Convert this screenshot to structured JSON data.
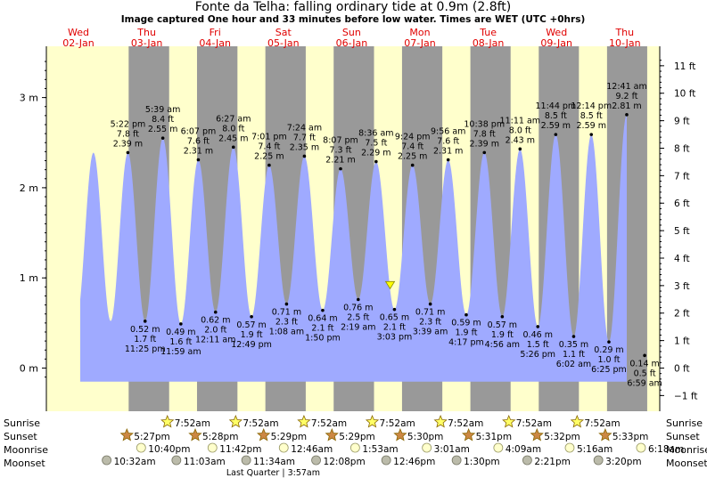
{
  "chart_data": {
    "type": "area",
    "title": "Fonte da Telha: falling  ordinary tide at 0.9m (2.8ft)",
    "subtitle": "Image captured One hour and 33 minutes before low water. Times are WET (UTC +0hrs)",
    "days": [
      {
        "day": "Wed",
        "date": "02-Jan"
      },
      {
        "day": "Thu",
        "date": "03-Jan"
      },
      {
        "day": "Fri",
        "date": "04-Jan"
      },
      {
        "day": "Sat",
        "date": "05-Jan"
      },
      {
        "day": "Sun",
        "date": "06-Jan"
      },
      {
        "day": "Mon",
        "date": "07-Jan"
      },
      {
        "day": "Tue",
        "date": "08-Jan"
      },
      {
        "day": "Wed",
        "date": "09-Jan"
      },
      {
        "day": "Thu",
        "date": "10-Jan"
      }
    ],
    "y_left": {
      "unit": "m",
      "ticks": [
        "0 m",
        "1 m",
        "2 m",
        "3 m"
      ],
      "values": [
        0,
        1,
        2,
        3
      ],
      "ylim": [
        -0.15,
        3.55
      ]
    },
    "y_right": {
      "unit": "ft",
      "ticks": [
        "−1 ft",
        "0 ft",
        "1 ft",
        "2 ft",
        "3 ft",
        "4 ft",
        "5 ft",
        "6 ft",
        "7 ft",
        "8 ft",
        "9 ft",
        "10 ft",
        "11 ft"
      ],
      "values": [
        -1,
        0,
        1,
        2,
        3,
        4,
        5,
        6,
        7,
        8,
        9,
        10,
        11
      ]
    },
    "tides": [
      {
        "kind": "high",
        "time": "5:22 pm",
        "ft": "7.8 ft",
        "m": 2.39,
        "label_m": "2.39 m",
        "day_offset": 0.7236
      },
      {
        "kind": "low",
        "time": "11:25 pm",
        "ft": "1.7 ft",
        "m": 0.52,
        "label_m": "0.52 m",
        "day_offset": 0.9757
      },
      {
        "kind": "high",
        "time": "5:39 am",
        "ft": "8.4 ft",
        "m": 2.55,
        "label_m": "2.55 m",
        "day_offset": 1.2354
      },
      {
        "kind": "low",
        "time": "11:59 am",
        "ft": "1.6 ft",
        "m": 0.49,
        "label_m": "0.49 m",
        "day_offset": 1.4993
      },
      {
        "kind": "high",
        "time": "6:07 pm",
        "ft": "7.6 ft",
        "m": 2.31,
        "label_m": "2.31 m",
        "day_offset": 1.7549
      },
      {
        "kind": "low",
        "time": "12:11 am",
        "ft": "2.0 ft",
        "m": 0.62,
        "label_m": "0.62 m",
        "day_offset": 2.0076
      },
      {
        "kind": "high",
        "time": "6:27 am",
        "ft": "8.0 ft",
        "m": 2.45,
        "label_m": "2.45 m",
        "day_offset": 2.2688
      },
      {
        "kind": "low",
        "time": "12:49 pm",
        "ft": "1.9 ft",
        "m": 0.57,
        "label_m": "0.57 m",
        "day_offset": 2.534
      },
      {
        "kind": "high",
        "time": "7:01 pm",
        "ft": "7.4 ft",
        "m": 2.25,
        "label_m": "2.25 m",
        "day_offset": 2.7924
      },
      {
        "kind": "low",
        "time": "1:08 am",
        "ft": "2.3 ft",
        "m": 0.71,
        "label_m": "0.71 m",
        "day_offset": 3.0472
      },
      {
        "kind": "high",
        "time": "7:24 am",
        "ft": "7.7 ft",
        "m": 2.35,
        "label_m": "2.35 m",
        "day_offset": 3.3083
      },
      {
        "kind": "low",
        "time": "1:50 pm",
        "ft": "2.1 ft",
        "m": 0.64,
        "label_m": "0.64 m",
        "day_offset": 3.5764
      },
      {
        "kind": "high",
        "time": "8:07 pm",
        "ft": "7.3 ft",
        "m": 2.21,
        "label_m": "2.21 m",
        "day_offset": 3.8382
      },
      {
        "kind": "low",
        "time": "2:19 am",
        "ft": "2.5 ft",
        "m": 0.76,
        "label_m": "0.76 m",
        "day_offset": 4.0965
      },
      {
        "kind": "high",
        "time": "8:36 am",
        "ft": "7.5 ft",
        "m": 2.29,
        "label_m": "2.29 m",
        "day_offset": 4.3583
      },
      {
        "kind": "low",
        "time": "3:03 pm",
        "ft": "2.1 ft",
        "m": 0.65,
        "label_m": "0.65 m",
        "day_offset": 4.6271
      },
      {
        "kind": "high",
        "time": "9:24 pm",
        "ft": "7.4 ft",
        "m": 2.25,
        "label_m": "2.25 m",
        "day_offset": 4.8917
      },
      {
        "kind": "low",
        "time": "3:39 am",
        "ft": "2.3 ft",
        "m": 0.71,
        "label_m": "0.71 m",
        "day_offset": 5.1521
      },
      {
        "kind": "high",
        "time": "9:56 am",
        "ft": "7.6 ft",
        "m": 2.31,
        "label_m": "2.31 m",
        "day_offset": 5.4139
      },
      {
        "kind": "low",
        "time": "4:17 pm",
        "ft": "1.9 ft",
        "m": 0.59,
        "label_m": "0.59 m",
        "day_offset": 5.6785
      },
      {
        "kind": "high",
        "time": "10:38 pm",
        "ft": "7.8 ft",
        "m": 2.39,
        "label_m": "2.39 m",
        "day_offset": 5.9431
      },
      {
        "kind": "low",
        "time": "4:56 am",
        "ft": "1.9 ft",
        "m": 0.57,
        "label_m": "0.57 m",
        "day_offset": 6.2056
      },
      {
        "kind": "high",
        "time": "11:11 am",
        "ft": "8.0 ft",
        "m": 2.43,
        "label_m": "2.43 m",
        "day_offset": 6.466
      },
      {
        "kind": "low",
        "time": "5:26 pm",
        "ft": "1.5 ft",
        "m": 0.46,
        "label_m": "0.46 m",
        "day_offset": 6.7264
      },
      {
        "kind": "high",
        "time": "11:44 pm",
        "ft": "8.5 ft",
        "m": 2.59,
        "label_m": "2.59 m",
        "day_offset": 6.9889
      },
      {
        "kind": "low",
        "time": "6:02 am",
        "ft": "1.1 ft",
        "m": 0.35,
        "label_m": "0.35 m",
        "day_offset": 7.2514
      },
      {
        "kind": "high",
        "time": "12:14 pm",
        "ft": "8.5 ft",
        "m": 2.59,
        "label_m": "2.59 m",
        "day_offset": 7.5097
      },
      {
        "kind": "low",
        "time": "6:25 pm",
        "ft": "1.0 ft",
        "m": 0.29,
        "label_m": "0.29 m",
        "day_offset": 7.7674
      },
      {
        "kind": "high",
        "time": "12:41 am",
        "ft": "9.2 ft",
        "m": 2.81,
        "label_m": "2.81 m",
        "day_offset": 8.0285
      },
      {
        "kind": "low",
        "time": "6:59 am",
        "ft": "0.5 ft",
        "m": 0.14,
        "label_m": "0.14 m",
        "day_offset": 8.291
      }
    ],
    "current": {
      "day_offset": 4.5632,
      "m": 0.9,
      "label": "falling  ordinary tide at 0.9m (2.8ft)"
    },
    "night_periods": [
      [
        0.735,
        1.328
      ],
      [
        1.736,
        2.328
      ],
      [
        2.737,
        3.328
      ],
      [
        3.737,
        4.328
      ],
      [
        4.738,
        5.328
      ],
      [
        5.739,
        6.328
      ],
      [
        6.74,
        7.328
      ],
      [
        7.74,
        8.328
      ]
    ],
    "sunrise": [
      {
        "time": "7:52am",
        "day_offset": 1.328
      },
      {
        "time": "7:52am",
        "day_offset": 2.328
      },
      {
        "time": "7:52am",
        "day_offset": 3.328
      },
      {
        "time": "7:52am",
        "day_offset": 4.328
      },
      {
        "time": "7:52am",
        "day_offset": 5.328
      },
      {
        "time": "7:52am",
        "day_offset": 6.328
      },
      {
        "time": "7:52am",
        "day_offset": 7.328
      }
    ],
    "sunset": [
      {
        "time": "5:27pm",
        "day_offset": 0.735
      },
      {
        "time": "5:28pm",
        "day_offset": 1.736
      },
      {
        "time": "5:29pm",
        "day_offset": 2.737
      },
      {
        "time": "5:29pm",
        "day_offset": 3.737
      },
      {
        "time": "5:30pm",
        "day_offset": 4.738
      },
      {
        "time": "5:31pm",
        "day_offset": 5.739
      },
      {
        "time": "5:32pm",
        "day_offset": 6.74
      },
      {
        "time": "5:33pm",
        "day_offset": 7.74
      }
    ],
    "moonrise": [
      {
        "time": "10:40pm",
        "day_offset": 0.944
      },
      {
        "time": "11:42pm",
        "day_offset": 1.988
      },
      {
        "time": "12:46am",
        "day_offset": 3.032
      },
      {
        "time": "1:53am",
        "day_offset": 4.078
      },
      {
        "time": "3:01am",
        "day_offset": 5.126
      },
      {
        "time": "4:09am",
        "day_offset": 6.173
      },
      {
        "time": "5:16am",
        "day_offset": 7.219
      },
      {
        "time": "6:18am",
        "day_offset": 8.263
      }
    ],
    "moonset": [
      {
        "time": "10:32am",
        "day_offset": 0.439
      },
      {
        "time": "11:03am",
        "day_offset": 1.46
      },
      {
        "time": "11:34am",
        "day_offset": 2.482
      },
      {
        "time": "12:08pm",
        "day_offset": 3.506
      },
      {
        "time": "12:46pm",
        "day_offset": 4.532
      },
      {
        "time": "1:30pm",
        "day_offset": 5.563
      },
      {
        "time": "2:21pm",
        "day_offset": 6.598
      },
      {
        "time": "3:20pm",
        "day_offset": 7.639
      }
    ],
    "moon_phase": {
      "label": "Last Quarter",
      "time": "3:57am",
      "day_offset": 2.165
    },
    "row_labels": {
      "sunrise": "Sunrise",
      "sunset": "Sunset",
      "moonrise": "Moonrise",
      "moonset": "Moonset"
    },
    "colors": {
      "day_bg": "#ffffcc",
      "night_bg": "#999999",
      "tide_fill": "#9faaff",
      "day_text": "#e00000",
      "current_marker": "#ffff00",
      "sun_star": "#ffff66",
      "sunset_star": "#cc8844",
      "moonrise": "#ffffcc",
      "moonset": "#bbbbaa"
    }
  }
}
